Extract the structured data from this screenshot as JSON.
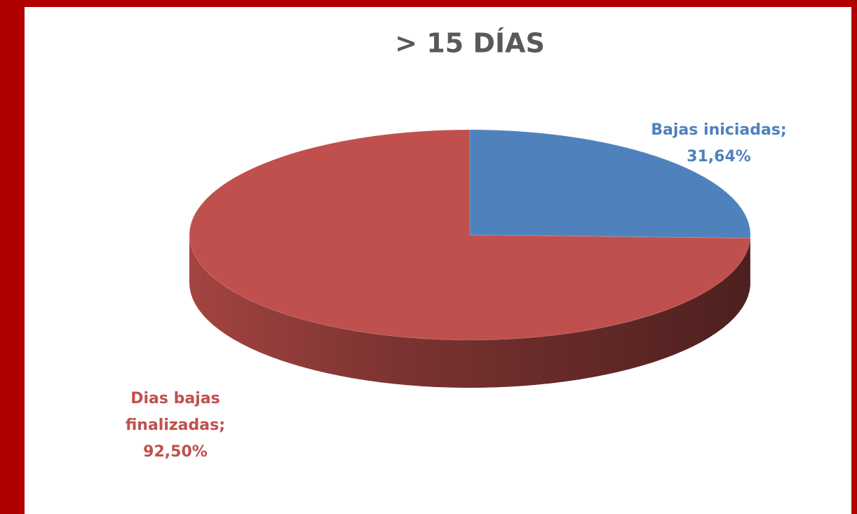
{
  "chart_data": {
    "type": "pie",
    "title": "> 15 DÍAS",
    "categories": [
      "Bajas iniciadas",
      "Dias bajas finalizadas"
    ],
    "values": [
      31.64,
      92.5
    ],
    "value_labels": [
      "31,64%",
      "92,50%"
    ],
    "label_separator": ";",
    "colors": [
      "#4f81bd",
      "#c0504d"
    ],
    "three_d": true
  }
}
